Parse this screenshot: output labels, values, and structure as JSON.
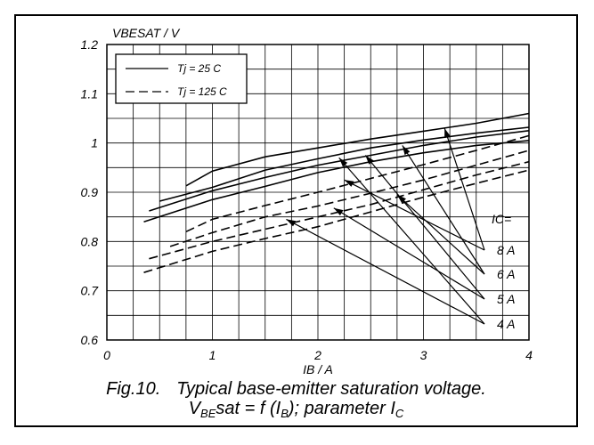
{
  "chart_data": {
    "type": "line",
    "y_axis_title": "VBESAT / V",
    "x_axis_title": "IB / A",
    "xlim": [
      0,
      4
    ],
    "ylim": [
      0.6,
      1.2
    ],
    "x_ticks": [
      "0",
      "1",
      "2",
      "3",
      "4"
    ],
    "y_ticks": [
      "0.6",
      "0.7",
      "0.8",
      "0.9",
      "1",
      "1.1",
      "1.2"
    ],
    "grid": true,
    "legend": [
      {
        "label": "Tj = 25 C",
        "style": "solid"
      },
      {
        "label": "Tj = 125 C",
        "style": "dashed"
      }
    ],
    "parameter_label": "IC=",
    "parameter_values": [
      "8 A",
      "6 A",
      "5 A",
      "4 A"
    ],
    "series": [
      {
        "ic": "8 A",
        "tj": "25 C",
        "style": "solid",
        "x": [
          0.75,
          1.0,
          1.5,
          2.0,
          2.5,
          3.0,
          3.5,
          4.0
        ],
        "y": [
          0.913,
          0.943,
          0.972,
          0.99,
          1.008,
          1.024,
          1.04,
          1.06
        ]
      },
      {
        "ic": "6 A",
        "tj": "25 C",
        "style": "solid",
        "x": [
          0.5,
          1.0,
          1.5,
          2.0,
          2.5,
          3.0,
          3.5,
          4.0
        ],
        "y": [
          0.882,
          0.91,
          0.945,
          0.968,
          0.99,
          1.006,
          1.02,
          1.032
        ]
      },
      {
        "ic": "5 A",
        "tj": "25 C",
        "style": "solid",
        "x": [
          0.4,
          1.0,
          1.5,
          2.0,
          2.5,
          3.0,
          3.5,
          4.0
        ],
        "y": [
          0.862,
          0.903,
          0.93,
          0.955,
          0.975,
          0.995,
          1.012,
          1.025
        ]
      },
      {
        "ic": "4 A",
        "tj": "25 C",
        "style": "solid",
        "x": [
          0.35,
          1.0,
          1.5,
          2.0,
          2.5,
          3.0,
          3.5,
          4.0
        ],
        "y": [
          0.84,
          0.885,
          0.912,
          0.94,
          0.962,
          0.98,
          0.995,
          1.005
        ]
      },
      {
        "ic": "8 A",
        "tj": "125 C",
        "style": "dashed",
        "x": [
          0.75,
          1.0,
          1.5,
          2.0,
          2.5,
          3.0,
          3.5,
          4.0
        ],
        "y": [
          0.82,
          0.845,
          0.873,
          0.9,
          0.928,
          0.956,
          0.985,
          1.015
        ]
      },
      {
        "ic": "6 A",
        "tj": "125 C",
        "style": "dashed",
        "x": [
          0.6,
          1.0,
          1.5,
          2.0,
          2.5,
          3.0,
          3.5,
          4.0
        ],
        "y": [
          0.79,
          0.818,
          0.85,
          0.872,
          0.898,
          0.925,
          0.955,
          0.985
        ]
      },
      {
        "ic": "5 A",
        "tj": "125 C",
        "style": "dashed",
        "x": [
          0.4,
          1.0,
          1.5,
          2.0,
          2.5,
          3.0,
          3.5,
          4.0
        ],
        "y": [
          0.765,
          0.8,
          0.825,
          0.85,
          0.875,
          0.905,
          0.935,
          0.962
        ]
      },
      {
        "ic": "4 A",
        "tj": "125 C",
        "style": "dashed",
        "x": [
          0.35,
          1.0,
          1.5,
          2.0,
          2.5,
          3.0,
          3.5,
          4.0
        ],
        "y": [
          0.737,
          0.78,
          0.806,
          0.83,
          0.86,
          0.89,
          0.918,
          0.945
        ]
      }
    ],
    "annotation_arrows": [
      {
        "label": "8 A",
        "targets": [
          [
            3.2,
            1.03
          ],
          [
            2.25,
            0.925
          ]
        ]
      },
      {
        "label": "6 A",
        "targets": [
          [
            2.8,
            0.995
          ],
          [
            2.75,
            0.895
          ]
        ]
      },
      {
        "label": "5 A",
        "targets": [
          [
            2.45,
            0.975
          ],
          [
            2.15,
            0.868
          ]
        ]
      },
      {
        "label": "4 A",
        "targets": [
          [
            2.2,
            0.97
          ],
          [
            1.7,
            0.845
          ]
        ]
      }
    ]
  },
  "caption": {
    "line1_fig": "Fig.10.",
    "line1_text": "Typical base-emitter saturation voltage.",
    "line2_v": "V",
    "line2_v_sub": "BE",
    "line2_mid": "sat = f (I",
    "line2_i_sub": "B",
    "line2_tail": "); parameter I",
    "line2_c_sub": "C"
  }
}
